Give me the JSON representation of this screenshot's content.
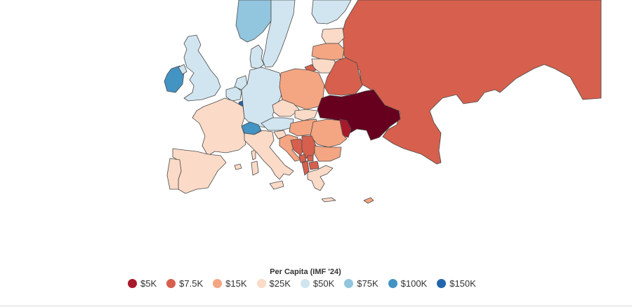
{
  "legend": {
    "title": "Per Capita (IMF '24)",
    "items": [
      {
        "label": "$5K",
        "color": "#a8192b"
      },
      {
        "label": "$7.5K",
        "color": "#d6604d"
      },
      {
        "label": "$15K",
        "color": "#f4a582"
      },
      {
        "label": "$25K",
        "color": "#fbdac7"
      },
      {
        "label": "$50K",
        "color": "#d1e5f0"
      },
      {
        "label": "$75K",
        "color": "#92c5de"
      },
      {
        "label": "$100K",
        "color": "#4393c3"
      },
      {
        "label": "$150K",
        "color": "#2166ac"
      }
    ]
  },
  "map": {
    "colors": {
      "tier_5k_dark": "#67001f",
      "tier_5k": "#a8192b",
      "tier_7_5k": "#d6604d",
      "tier_15k": "#f4a582",
      "tier_25k": "#fbdac7",
      "tier_50k": "#d1e5f0",
      "tier_75k": "#92c5de",
      "tier_100k": "#4393c3"
    }
  }
}
